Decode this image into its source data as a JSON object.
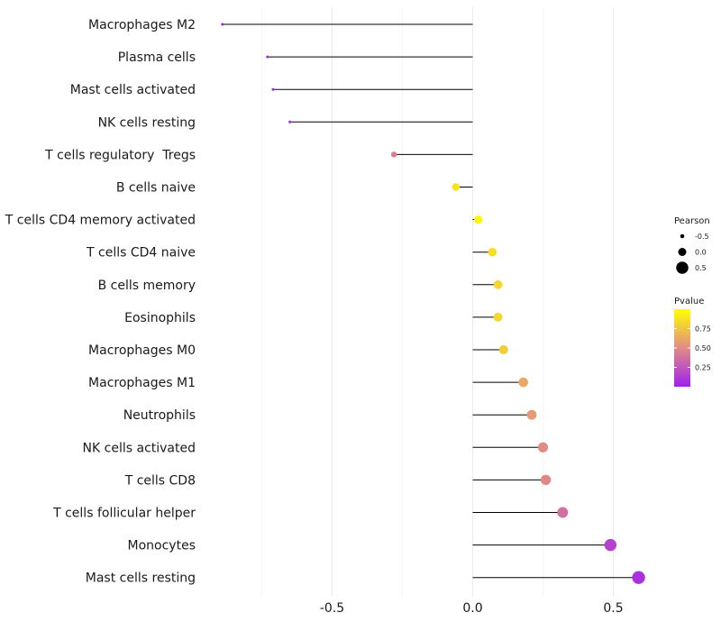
{
  "chart_data": {
    "type": "lollipop",
    "title": "",
    "xlabel": "",
    "ylabel": "",
    "xlim": [
      -0.9,
      0.65
    ],
    "x_ticks": [
      -0.5,
      0.0,
      0.5
    ],
    "x_tick_labels": [
      "-0.5",
      "0.0",
      "0.5"
    ],
    "grid": true,
    "items": [
      {
        "label": "Macrophages M2",
        "pearson": -0.89,
        "pvalue": 0.0001
      },
      {
        "label": "Plasma cells",
        "pearson": -0.73,
        "pvalue": 0.02
      },
      {
        "label": "Mast cells activated",
        "pearson": -0.71,
        "pvalue": 0.03
      },
      {
        "label": "NK cells resting",
        "pearson": -0.65,
        "pvalue": 0.06
      },
      {
        "label": "T cells regulatory  Tregs",
        "pearson": -0.28,
        "pvalue": 0.45
      },
      {
        "label": "B cells naive",
        "pearson": -0.06,
        "pvalue": 0.88
      },
      {
        "label": "T cells CD4 memory activated",
        "pearson": 0.02,
        "pvalue": 0.96
      },
      {
        "label": "T cells CD4 naive",
        "pearson": 0.07,
        "pvalue": 0.86
      },
      {
        "label": "B cells memory",
        "pearson": 0.09,
        "pvalue": 0.82
      },
      {
        "label": "Eosinophils",
        "pearson": 0.09,
        "pvalue": 0.82
      },
      {
        "label": "Macrophages M0",
        "pearson": 0.11,
        "pvalue": 0.78
      },
      {
        "label": "Macrophages M1",
        "pearson": 0.18,
        "pvalue": 0.63
      },
      {
        "label": "Neutrophils",
        "pearson": 0.21,
        "pvalue": 0.57
      },
      {
        "label": "NK cells activated",
        "pearson": 0.25,
        "pvalue": 0.5
      },
      {
        "label": "T cells CD8",
        "pearson": 0.26,
        "pvalue": 0.48
      },
      {
        "label": "T cells follicular helper",
        "pearson": 0.32,
        "pvalue": 0.38
      },
      {
        "label": "Monocytes",
        "pearson": 0.49,
        "pvalue": 0.16
      },
      {
        "label": "Mast cells resting",
        "pearson": 0.59,
        "pvalue": 0.08
      }
    ],
    "legend": {
      "placement": "right",
      "size_title": "Pearson",
      "size_values": [
        -0.5,
        0.0,
        0.5
      ],
      "size_labels": [
        "-0.5",
        "0.0",
        "0.5"
      ],
      "color_title": "Pvalue",
      "color_breaks": [
        0.25,
        0.5,
        0.75
      ],
      "color_labels": [
        "0.25",
        "0.50",
        "0.75"
      ],
      "color_low": "#a020f0",
      "color_mid": "#e28b86",
      "color_high": "#ffff00"
    }
  }
}
